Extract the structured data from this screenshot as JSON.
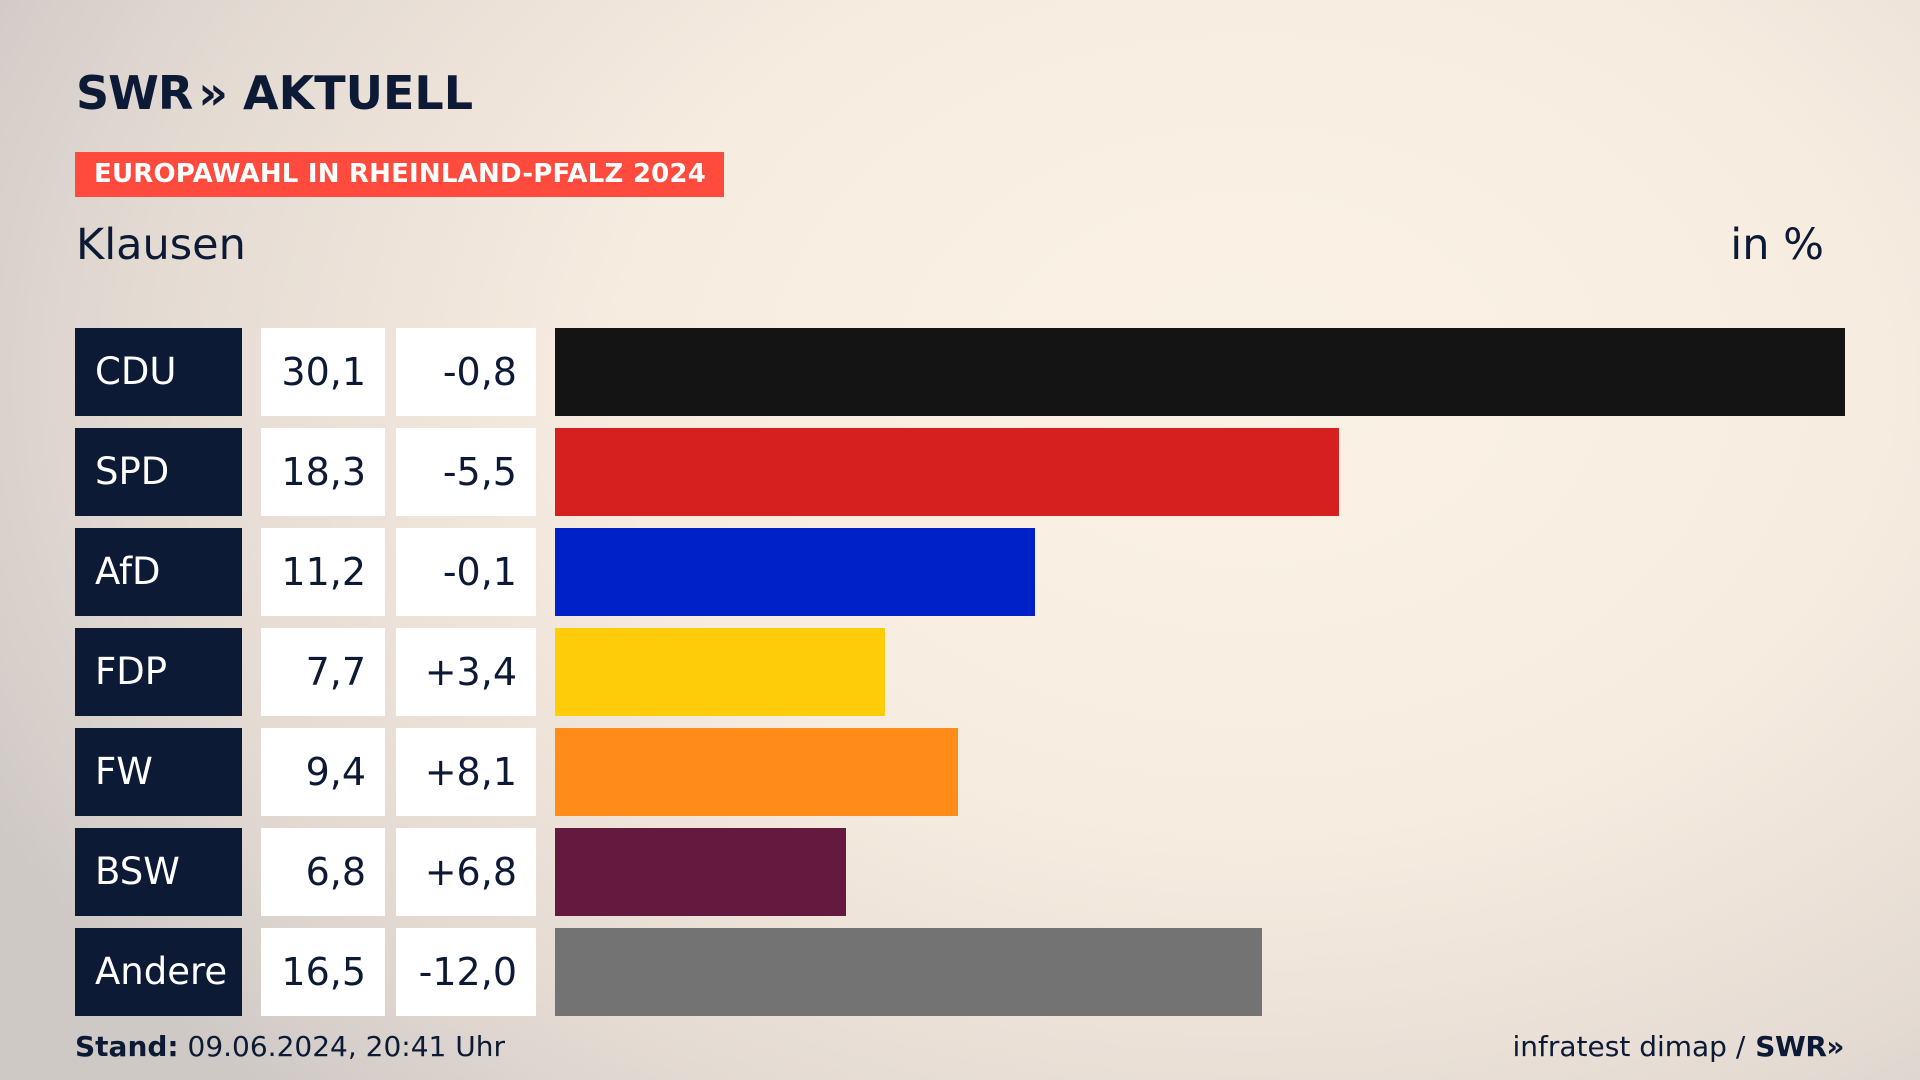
{
  "header": {
    "brand": "SWR",
    "brand_chevron": "»",
    "brand_sub": "AKTUELL",
    "banner": "EUROPAWAHL IN RHEINLAND-PFALZ 2024",
    "place": "Klausen",
    "unit": "in %"
  },
  "footer": {
    "stand_label": "Stand:",
    "stand_value": " 09.06.2024, 20:41 Uhr",
    "source": "infratest dimap /",
    "source_logo": "SWR»"
  },
  "colors": {
    "accent": "#ff4b3e",
    "navy": "#0c1a36"
  },
  "chart_data": {
    "type": "bar",
    "orientation": "horizontal",
    "title": "EUROPAWAHL IN RHEINLAND-PFALZ 2024",
    "subtitle": "Klausen",
    "unit": "in %",
    "categories": [
      "CDU",
      "SPD",
      "AfD",
      "FDP",
      "FW",
      "BSW",
      "Andere"
    ],
    "values": [
      30.1,
      18.3,
      11.2,
      7.7,
      9.4,
      6.8,
      16.5
    ],
    "values_display": [
      "30,1",
      "18,3",
      "11,2",
      "7,7",
      "9,4",
      "6,8",
      "16,5"
    ],
    "changes": [
      -0.8,
      -5.5,
      -0.1,
      3.4,
      8.1,
      6.8,
      -12.0
    ],
    "changes_display": [
      "-0,8",
      "-5,5",
      "-0,1",
      "+3,4",
      "+8,1",
      "+6,8",
      "-12,0"
    ],
    "colors": [
      "#141414",
      "#d61f1f",
      "#0021c8",
      "#ffcc0a",
      "#ff8c19",
      "#65193f",
      "#737373"
    ],
    "xlim": [
      0,
      30.1
    ],
    "grid": false,
    "legend": "none"
  }
}
